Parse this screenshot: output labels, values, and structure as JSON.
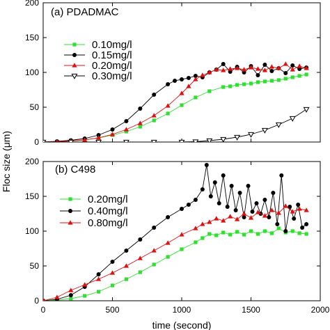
{
  "chart_data": [
    {
      "type": "line",
      "panel_label": "(a) PDADMAC",
      "x_range": [
        0,
        2000
      ],
      "ylim": [
        0,
        200
      ],
      "yticks": [
        0,
        50,
        100,
        150,
        200
      ],
      "ytick_labels": [
        "0",
        "50",
        "100",
        "150",
        "200"
      ],
      "legend_position": "left",
      "series": [
        {
          "name": "0.10mg/l",
          "color": "#33dd33",
          "marker": "square",
          "x": [
            0,
            100,
            200,
            300,
            400,
            500,
            600,
            700,
            800,
            900,
            1000,
            1100,
            1200,
            1300,
            1350,
            1400,
            1450,
            1500,
            1550,
            1600,
            1650,
            1700,
            1750,
            1800,
            1850,
            1900
          ],
          "y": [
            0,
            0.5,
            1.5,
            3,
            6,
            10,
            15,
            22,
            31,
            41,
            53,
            64,
            73,
            79,
            80,
            82,
            83,
            84,
            86,
            87,
            88,
            89,
            91,
            93,
            95,
            97
          ]
        },
        {
          "name": "0.15mg/l",
          "color": "#000000",
          "marker": "circle",
          "x": [
            0,
            100,
            200,
            300,
            400,
            500,
            600,
            700,
            800,
            900,
            950,
            1000,
            1050,
            1100,
            1150,
            1200,
            1250,
            1300,
            1350,
            1400,
            1450,
            1500,
            1550,
            1600,
            1650,
            1700,
            1750,
            1800,
            1850,
            1900
          ],
          "y": [
            0,
            1,
            2.5,
            5,
            10,
            18,
            30,
            48,
            68,
            83,
            88,
            90,
            92,
            95,
            93,
            100,
            104,
            112,
            101,
            108,
            100,
            109,
            96,
            111,
            102,
            106,
            99,
            110,
            105,
            107
          ]
        },
        {
          "name": "0.20mg/l",
          "color": "#dd1111",
          "marker": "triangle-up",
          "x": [
            0,
            100,
            200,
            300,
            400,
            500,
            600,
            700,
            800,
            900,
            1000,
            1050,
            1100,
            1150,
            1200,
            1250,
            1300,
            1350,
            1400,
            1450,
            1500,
            1550,
            1600,
            1650,
            1700,
            1750,
            1800,
            1850,
            1900
          ],
          "y": [
            0,
            0.5,
            1.5,
            3,
            6,
            11,
            18,
            27,
            38,
            52,
            70,
            80,
            90,
            96,
            100,
            104,
            103,
            105,
            106,
            104,
            107,
            105,
            103,
            108,
            106,
            112,
            104,
            109,
            106
          ]
        },
        {
          "name": "0.30mg/l",
          "color": "#000000",
          "marker": "triangle-down-open",
          "x": [
            0,
            200,
            400,
            600,
            800,
            1000,
            1100,
            1200,
            1300,
            1400,
            1500,
            1600,
            1700,
            1800,
            1900
          ],
          "y": [
            0,
            0,
            0,
            0,
            0,
            0,
            0.5,
            2,
            4,
            7,
            11,
            17,
            25,
            34,
            47
          ]
        }
      ]
    },
    {
      "type": "line",
      "panel_label": "(b) C498",
      "x_range": [
        0,
        2000
      ],
      "xticks": [
        0,
        500,
        1000,
        1500,
        2000
      ],
      "xtick_labels": [
        "0",
        "500",
        "1000",
        "1500",
        "2000"
      ],
      "ylim": [
        0,
        200
      ],
      "yticks": [
        0,
        50,
        100,
        150,
        200
      ],
      "ytick_labels": [
        "0",
        "50",
        "100",
        "150",
        "200"
      ],
      "legend_position": "left",
      "series": [
        {
          "name": "0.20mg/l",
          "color": "#33dd33",
          "marker": "square",
          "x": [
            0,
            100,
            200,
            300,
            400,
            500,
            600,
            700,
            800,
            900,
            1000,
            1100,
            1150,
            1200,
            1250,
            1300,
            1350,
            1400,
            1450,
            1500,
            1550,
            1600,
            1650,
            1700,
            1750,
            1800,
            1850,
            1900
          ],
          "y": [
            0,
            1,
            3,
            7,
            13,
            22,
            31,
            41,
            52,
            63,
            74,
            84,
            90,
            96,
            94,
            98,
            95,
            99,
            95,
            100,
            96,
            100,
            97,
            104,
            98,
            100,
            97,
            96
          ]
        },
        {
          "name": "0.40mg/l",
          "color": "#000000",
          "marker": "circle",
          "x": [
            0,
            100,
            200,
            300,
            400,
            500,
            600,
            700,
            800,
            900,
            1000,
            1050,
            1100,
            1150,
            1180,
            1210,
            1240,
            1270,
            1300,
            1330,
            1360,
            1390,
            1420,
            1450,
            1480,
            1510,
            1540,
            1570,
            1600,
            1630,
            1660,
            1690,
            1720,
            1750,
            1780,
            1810,
            1840,
            1870,
            1900
          ],
          "y": [
            0,
            2,
            8,
            20,
            38,
            56,
            72,
            88,
            105,
            120,
            132,
            138,
            145,
            160,
            195,
            150,
            170,
            140,
            180,
            135,
            165,
            130,
            155,
            120,
            165,
            128,
            140,
            125,
            145,
            120,
            155,
            110,
            180,
            100,
            135,
            118,
            138,
            105,
            110
          ]
        },
        {
          "name": "0.80mg/l",
          "color": "#dd1111",
          "marker": "triangle-up",
          "x": [
            0,
            100,
            200,
            300,
            400,
            500,
            600,
            700,
            800,
            900,
            1000,
            1100,
            1150,
            1200,
            1250,
            1300,
            1350,
            1400,
            1450,
            1500,
            1550,
            1600,
            1650,
            1700,
            1750,
            1800,
            1850,
            1900
          ],
          "y": [
            0,
            5,
            15,
            23,
            31,
            40,
            50,
            61,
            72,
            83,
            95,
            104,
            110,
            113,
            118,
            115,
            121,
            117,
            125,
            119,
            127,
            122,
            130,
            126,
            136,
            128,
            132,
            130
          ]
        }
      ]
    }
  ],
  "axes": {
    "ylabel": "Floc size (μm)",
    "xlabel": "time (second)"
  }
}
